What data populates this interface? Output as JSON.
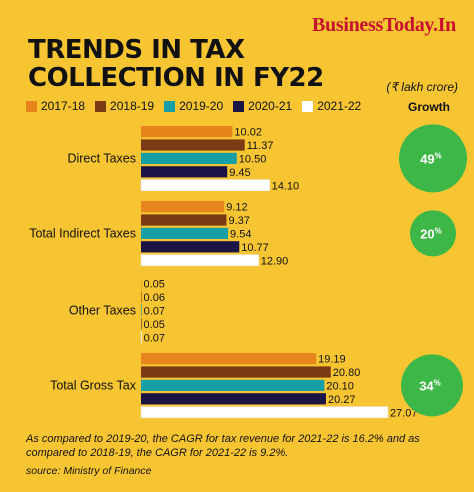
{
  "brand": "BusinessToday.In",
  "title": "TRENDS IN TAX\nCOLLECTION IN FY22",
  "unit_note": "(₹ lakh crore)",
  "growth_header": "Growth",
  "colors": {
    "2017-18": "#e8841c",
    "2018-19": "#7a3b12",
    "2019-20": "#16a0a6",
    "2020-21": "#1b1446",
    "2021-22": "#ffffff",
    "growth_circle": "#3db848"
  },
  "chart_data": {
    "type": "bar",
    "orientation": "horizontal",
    "categories": [
      "Direct Taxes",
      "Total Indirect Taxes",
      "Other Taxes",
      "Total Gross Tax"
    ],
    "series": [
      {
        "name": "2017-18",
        "values": [
          10.02,
          9.12,
          0.05,
          19.19
        ]
      },
      {
        "name": "2018-19",
        "values": [
          11.37,
          9.37,
          0.06,
          20.8
        ]
      },
      {
        "name": "2019-20",
        "values": [
          10.5,
          9.54,
          0.07,
          20.1
        ]
      },
      {
        "name": "2020-21",
        "values": [
          9.45,
          10.77,
          0.05,
          20.27
        ]
      },
      {
        "name": "2021-22",
        "values": [
          14.1,
          12.9,
          0.07,
          27.07
        ]
      }
    ],
    "value_labels": [
      [
        "10.02",
        "11.37",
        "10.50",
        "9.45",
        "14.10"
      ],
      [
        "9.12",
        "9.37",
        "9.54",
        "10.77",
        "12.90"
      ],
      [
        "0.05",
        "0.06",
        "0.07",
        "0.05",
        "0.07"
      ],
      [
        "19.19",
        "20.80",
        "20.10",
        "20.27",
        "27.07"
      ]
    ],
    "growth": [
      "49%",
      "20%",
      "",
      "34%"
    ],
    "growth_values": [
      49,
      20,
      null,
      34
    ],
    "xlim": [
      0,
      27.07
    ]
  },
  "footnote": "As compared to 2019-20, the CAGR for tax revenue for 2021-22 is 16.2% and as compared to 2018-19, the CAGR for 2021-22 is 9.2%.",
  "source": "source: Ministry of Finance"
}
